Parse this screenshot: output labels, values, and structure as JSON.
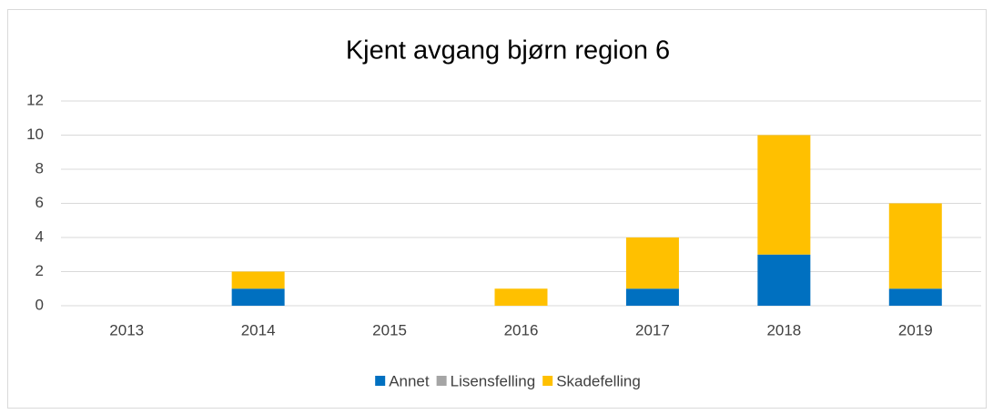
{
  "chart_data": {
    "type": "stacked_bar",
    "title": "Kjent avgang bjørn region 6",
    "categories": [
      "2013",
      "2014",
      "2015",
      "2016",
      "2017",
      "2018",
      "2019"
    ],
    "series": [
      {
        "name": "Annet",
        "color": "#0070c0",
        "values": [
          0,
          1,
          0,
          0,
          1,
          3,
          1
        ]
      },
      {
        "name": "Lisensfelling",
        "color": "#a5a5a5",
        "values": [
          0,
          0,
          0,
          0,
          0,
          0,
          0
        ]
      },
      {
        "name": "Skadefelling",
        "color": "#ffc000",
        "values": [
          0,
          1,
          0,
          1,
          3,
          7,
          5
        ]
      }
    ],
    "ylim": [
      0,
      12
    ],
    "yticks": [
      0,
      2,
      4,
      6,
      8,
      10,
      12
    ],
    "grid": true,
    "legend": "bottom"
  }
}
